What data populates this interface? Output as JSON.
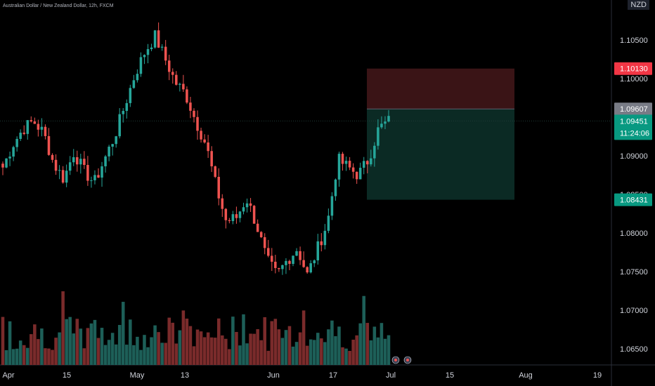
{
  "header": {
    "symbol_title": "Australian Dollar / New Zealand Dollar, 12h, FXCM"
  },
  "currency_label": "NZD",
  "price_tags": {
    "stop": "1.10130",
    "entry": "1.09607",
    "last": "1.09451",
    "countdown": "11:24:06",
    "target": "1.08431"
  },
  "colors": {
    "up": "#26a69a",
    "down": "#ef5350",
    "stop_zone": "#3a1416",
    "target_zone": "#0b2a24",
    "stop_tag": "#f23645",
    "entry_tag": "#787b86",
    "last_tag": "#089981"
  },
  "chart_data": {
    "type": "candlestick",
    "title": "Australian Dollar / New Zealand Dollar, 12h, FXCM",
    "ylabel": "NZD",
    "ylim": [
      1.0625,
      1.1125
    ],
    "y_ticks": [
      "1.10500",
      "1.10000",
      "1.09000",
      "1.08500",
      "1.08000",
      "1.07500",
      "1.07000",
      "1.06500"
    ],
    "x_ticks": [
      "Apr",
      "15",
      "May",
      "13",
      "Jun",
      "17",
      "Jul",
      "15",
      "Aug",
      "19"
    ],
    "close_path": [
      1.0885,
      1.0915,
      1.0935,
      1.0945,
      1.093,
      1.089,
      1.087,
      1.0905,
      1.088,
      1.0865,
      1.0895,
      1.0925,
      1.0965,
      1.1005,
      1.1035,
      1.1055,
      1.1025,
      1.0995,
      1.098,
      1.0945,
      1.0915,
      1.086,
      1.0815,
      1.082,
      1.0845,
      1.081,
      1.0765,
      1.0745,
      1.0765,
      1.078,
      1.0745,
      1.078,
      1.0815,
      1.0895,
      1.0885,
      1.0875,
      1.0895,
      1.0935,
      1.0945
    ],
    "position": {
      "stop": 1.1013,
      "entry": 1.09607,
      "target": 1.08431
    },
    "last_price": 1.09451
  }
}
